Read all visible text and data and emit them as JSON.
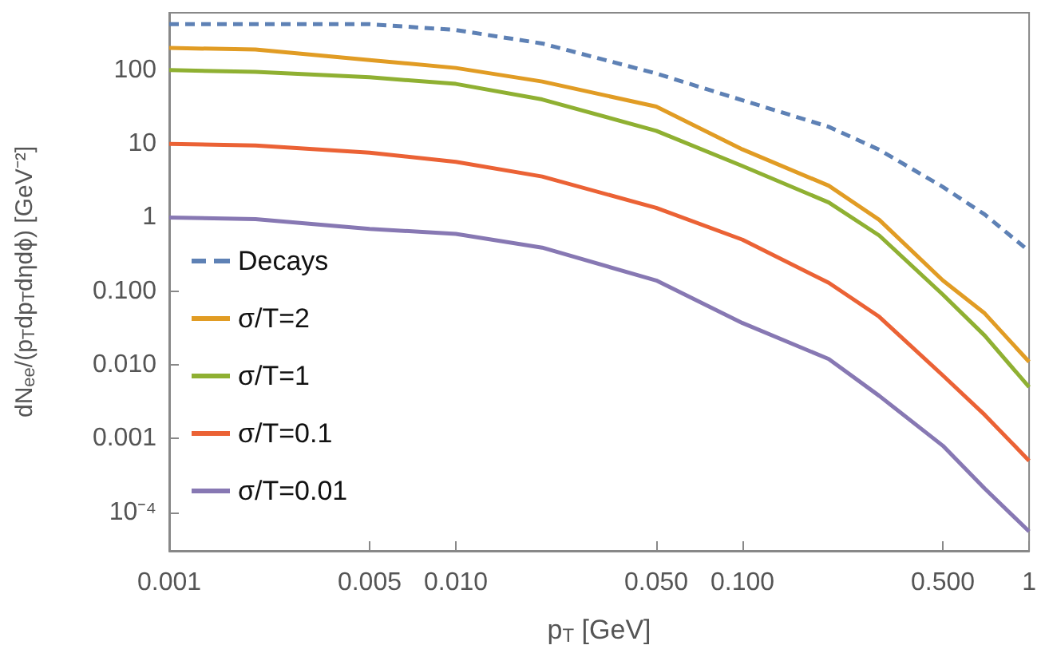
{
  "chart_data": {
    "type": "line",
    "xlabel": "p$_{T}$ [GeV]",
    "ylabel": "dN$_{ee}$/(p$_{T}$dp$_{T}$dηdϕ) [GeV⁻²]",
    "x": [
      0.001,
      0.002,
      0.005,
      0.01,
      0.02,
      0.05,
      0.1,
      0.2,
      0.3,
      0.5,
      0.7,
      1
    ],
    "series": [
      {
        "name": "Decays",
        "color": "#5e81b5",
        "line_style": "dashed",
        "values": [
          420,
          420,
          420,
          350,
          230,
          90,
          39,
          17,
          8.3,
          2.6,
          1.1,
          0.35
        ]
      },
      {
        "name": "σ/T=2",
        "color": "#e19c24",
        "values": [
          200,
          190,
          137,
          107,
          70,
          32,
          8.4,
          2.7,
          0.93,
          0.14,
          0.05,
          0.011
        ]
      },
      {
        "name": "σ/T=1",
        "color": "#8fb032",
        "values": [
          100,
          95,
          80,
          65,
          40,
          15,
          5,
          1.6,
          0.57,
          0.09,
          0.025,
          0.005
        ]
      },
      {
        "name": "σ/T=0.1",
        "color": "#eb6235",
        "values": [
          10,
          9.5,
          7.6,
          5.7,
          3.6,
          1.35,
          0.5,
          0.13,
          0.045,
          0.0072,
          0.0021,
          0.0005
        ]
      },
      {
        "name": "σ/T=0.01",
        "color": "#8778b3",
        "values": [
          1,
          0.95,
          0.7,
          0.6,
          0.39,
          0.14,
          0.037,
          0.012,
          0.0038,
          0.0008,
          0.00021,
          5.5e-05
        ]
      }
    ],
    "log": "xy",
    "xlim": [
      0.001,
      1
    ],
    "xticks": [
      0.001,
      {
        "value": 0.005,
        "label": "0.005"
      },
      {
        "value": 0.01,
        "label": "0.010"
      },
      {
        "value": 0.05,
        "label": "0.050"
      },
      {
        "value": 0.1,
        "label": "0.100"
      },
      {
        "value": 0.5,
        "label": "0.500"
      },
      1
    ],
    "ylim": [
      3e-05,
      600
    ],
    "yticks": [
      {
        "value": 0.0001,
        "label": "10⁻⁴"
      },
      0.001,
      {
        "value": 0.01,
        "label": "0.010"
      },
      {
        "value": 0.1,
        "label": "0.100"
      },
      1,
      10,
      100
    ],
    "grid": false,
    "legend": "left",
    "marker": "none",
    "line_style": "solid"
  }
}
